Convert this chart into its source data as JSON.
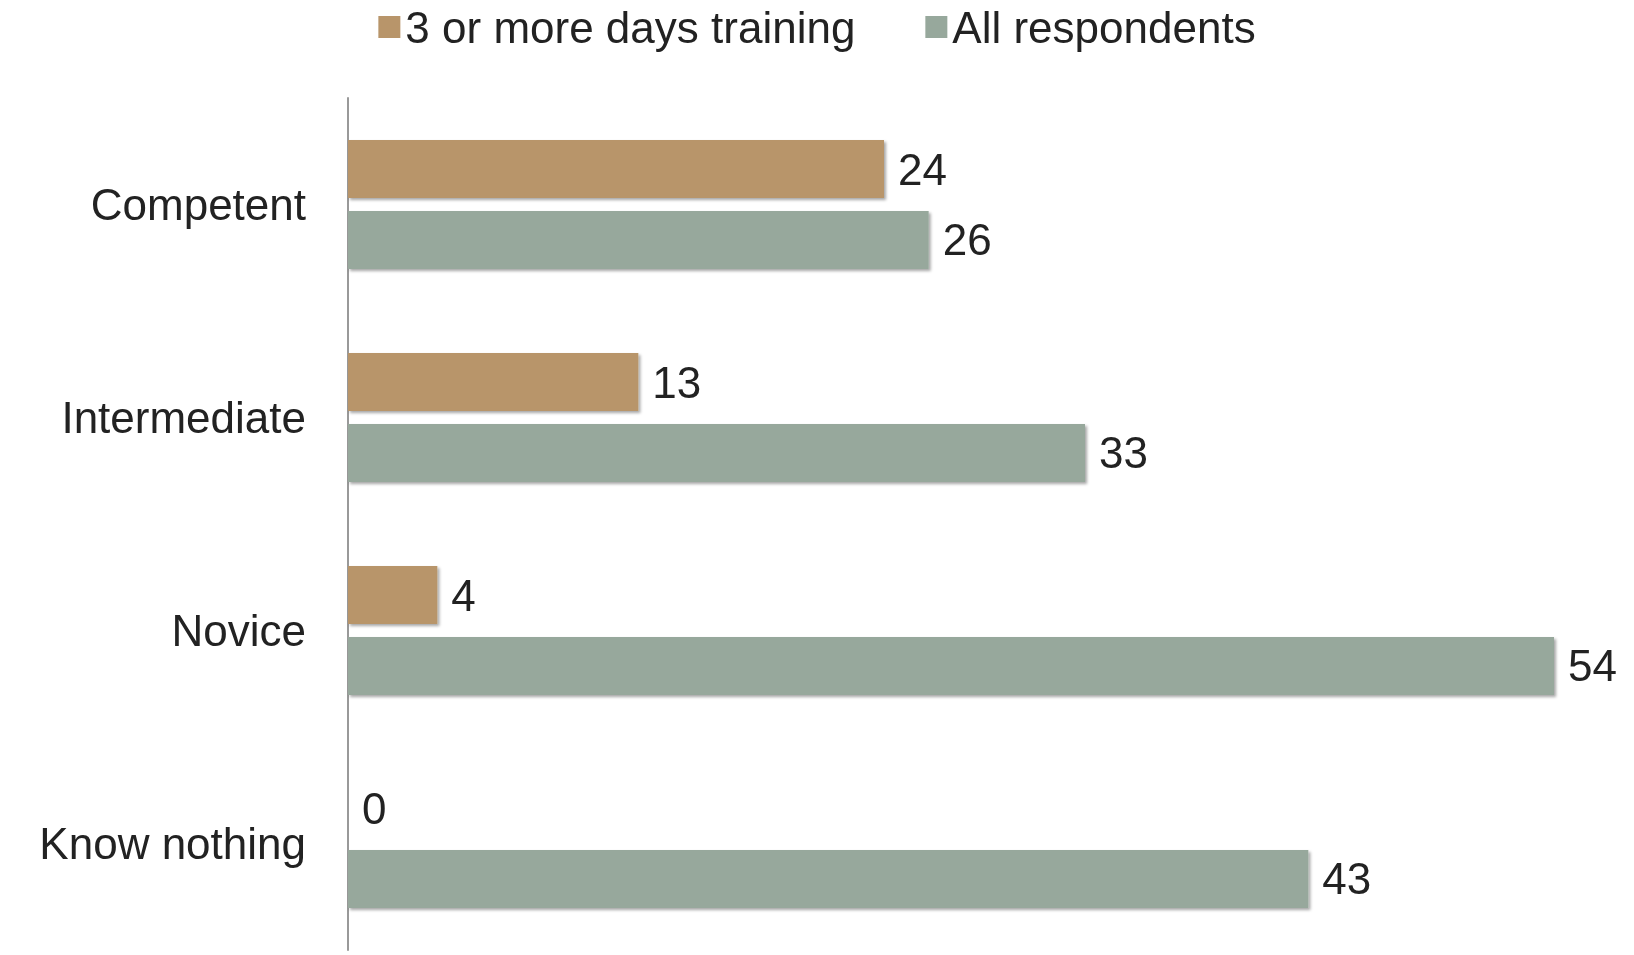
{
  "chart_data": {
    "type": "bar",
    "orientation": "horizontal",
    "categories": [
      "Competent",
      "Intermediate",
      "Novice",
      "Know nothing"
    ],
    "series": [
      {
        "name": "3 or more days training",
        "color": "#b8956a",
        "values": [
          24,
          13,
          4,
          0
        ]
      },
      {
        "name": "All respondents",
        "color": "#97a89c",
        "values": [
          26,
          33,
          54,
          43
        ]
      }
    ],
    "data_labels": true,
    "legend": "top"
  }
}
